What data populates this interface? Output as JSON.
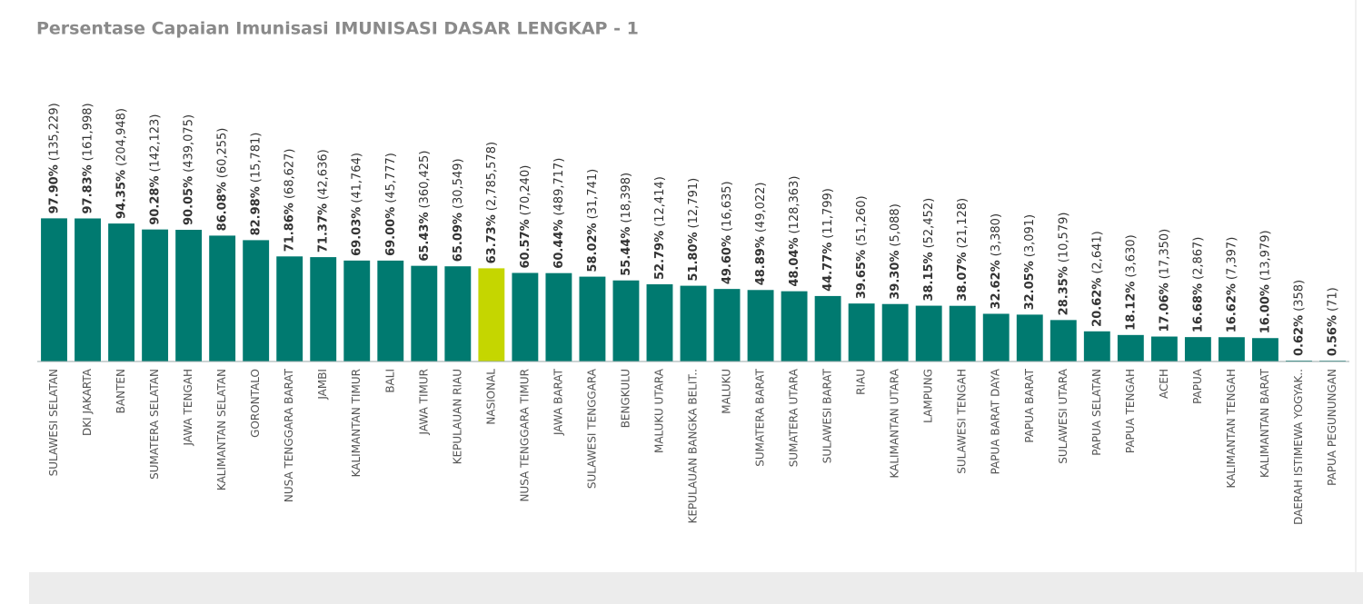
{
  "chart_data": {
    "type": "bar",
    "title": "Persentase Capaian Imunisasi IMUNISASI DASAR LENGKAP - 1",
    "categories": [
      "SULAWESI SELATAN",
      "DKI JAKARTA",
      "BANTEN",
      "SUMATERA SELATAN",
      "JAWA TENGAH",
      "KALIMANTAN SELATAN",
      "GORONTALO",
      "NUSA TENGGARA BARAT",
      "JAMBI",
      "KALIMANTAN TIMUR",
      "BALI",
      "JAWA TIMUR",
      "KEPULAUAN RIAU",
      "NASIONAL",
      "NUSA TENGGARA TIMUR",
      "JAWA BARAT",
      "SULAWESI TENGGARA",
      "BENGKULU",
      "MALUKU UTARA",
      "KEPULAUAN BANGKA BELIT..",
      "MALUKU",
      "SUMATERA BARAT",
      "SUMATERA UTARA",
      "SULAWESI BARAT",
      "RIAU",
      "KALIMANTAN UTARA",
      "LAMPUNG",
      "SULAWESI TENGAH",
      "PAPUA BARAT DAYA",
      "PAPUA BARAT",
      "SULAWESI UTARA",
      "PAPUA SELATAN",
      "PAPUA TENGAH",
      "ACEH",
      "PAPUA",
      "KALIMANTAN TENGAH",
      "KALIMANTAN BARAT",
      "DAERAH ISTIMEWA YOGYAK..",
      "PAPUA PEGUNUNGAN"
    ],
    "values": [
      97.9,
      97.83,
      94.35,
      90.28,
      90.05,
      86.08,
      82.98,
      71.86,
      71.37,
      69.03,
      69.0,
      65.43,
      65.09,
      63.73,
      60.57,
      60.44,
      58.02,
      55.44,
      52.79,
      51.8,
      49.6,
      48.89,
      48.04,
      44.77,
      39.65,
      39.3,
      38.15,
      38.07,
      32.62,
      32.05,
      28.35,
      20.62,
      18.12,
      17.06,
      16.68,
      16.62,
      16.0,
      0.62,
      0.56
    ],
    "value_labels": [
      "97.90%",
      "97.83%",
      "94.35%",
      "90.28%",
      "90.05%",
      "86.08%",
      "82.98%",
      "71.86%",
      "71.37%",
      "69.03%",
      "69.00%",
      "65.43%",
      "65.09%",
      "63.73%",
      "60.57%",
      "60.44%",
      "58.02%",
      "55.44%",
      "52.79%",
      "51.80%",
      "49.60%",
      "48.89%",
      "48.04%",
      "44.77%",
      "39.65%",
      "39.30%",
      "38.15%",
      "38.07%",
      "32.62%",
      "32.05%",
      "28.35%",
      "20.62%",
      "18.12%",
      "17.06%",
      "16.68%",
      "16.62%",
      "16.00%",
      "0.62%",
      "0.56%"
    ],
    "counts": [
      135229,
      161998,
      204948,
      142123,
      439075,
      60255,
      15781,
      68627,
      42636,
      41764,
      45777,
      360425,
      30549,
      2785578,
      70240,
      489717,
      31741,
      18398,
      12414,
      12791,
      16635,
      49022,
      128363,
      11799,
      51260,
      5088,
      52452,
      21128,
      3380,
      3091,
      10579,
      2641,
      3630,
      17350,
      2867,
      7397,
      13979,
      358,
      71
    ],
    "count_labels": [
      "(135,229)",
      "(161,998)",
      "(204,948)",
      "(142,123)",
      "(439,075)",
      "(60,255)",
      "(15,781)",
      "(68,627)",
      "(42,636)",
      "(41,764)",
      "(45,777)",
      "(360,425)",
      "(30,549)",
      "(2,785,578)",
      "(70,240)",
      "(489,717)",
      "(31,741)",
      "(18,398)",
      "(12,414)",
      "(12,791)",
      "(16,635)",
      "(49,022)",
      "(128,363)",
      "(11,799)",
      "(51,260)",
      "(5,088)",
      "(52,452)",
      "(21,128)",
      "(3,380)",
      "(3,091)",
      "(10,579)",
      "(2,641)",
      "(3,630)",
      "(17,350)",
      "(2,867)",
      "(7,397)",
      "(13,979)",
      "(358)",
      "(71)"
    ],
    "colors": [
      "#007a70",
      "#007a70",
      "#007a70",
      "#007a70",
      "#007a70",
      "#007a70",
      "#007a70",
      "#007a70",
      "#007a70",
      "#007a70",
      "#007a70",
      "#007a70",
      "#007a70",
      "#c5d600",
      "#007a70",
      "#007a70",
      "#007a70",
      "#007a70",
      "#007a70",
      "#007a70",
      "#007a70",
      "#007a70",
      "#007a70",
      "#007a70",
      "#007a70",
      "#007a70",
      "#007a70",
      "#007a70",
      "#007a70",
      "#007a70",
      "#007a70",
      "#007a70",
      "#007a70",
      "#007a70",
      "#007a70",
      "#007a70",
      "#007a70",
      "#007a70",
      "#007a70"
    ],
    "ylim": [
      0,
      100
    ]
  }
}
